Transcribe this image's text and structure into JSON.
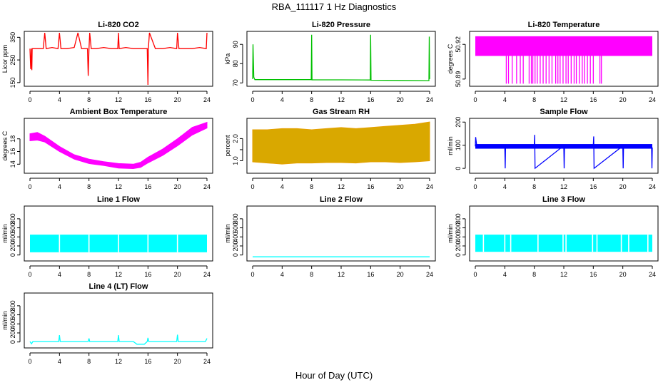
{
  "figure": {
    "title": "RBA_111117  1 Hz Diagnostics",
    "xlabel": "Hour of Day (UTC)"
  },
  "chart_data": [
    {
      "id": "co2",
      "type": "line",
      "title": "Li-820 CO2",
      "ylabel": "Licor ppm",
      "color": "#ff0000",
      "xlim": [
        0,
        24
      ],
      "ylim": [
        140,
        370
      ],
      "x_ticks": [
        0,
        4,
        8,
        12,
        16,
        20,
        24
      ],
      "y_ticks": [
        150,
        250,
        350
      ],
      "series": [
        {
          "x": [
            0,
            0.1,
            0.2,
            0.25,
            0.3,
            0.5,
            1,
            1.8,
            2,
            2.2,
            3,
            3.8,
            4,
            4.2,
            5,
            6,
            6.5,
            7,
            7.8,
            7.9,
            8,
            8.1,
            8.3,
            9,
            10,
            11,
            11.9,
            12,
            12.1,
            13,
            14,
            15,
            15.9,
            16,
            16.05,
            16.2,
            17,
            18,
            19,
            19.9,
            20,
            20.2,
            21,
            22,
            23,
            23.9,
            24
          ],
          "y": [
            300,
            210,
            300,
            205,
            300,
            300,
            300,
            300,
            370,
            300,
            305,
            300,
            370,
            300,
            300,
            305,
            370,
            300,
            300,
            180,
            300,
            370,
            300,
            300,
            305,
            300,
            300,
            370,
            300,
            305,
            300,
            300,
            300,
            140,
            300,
            370,
            300,
            300,
            305,
            300,
            370,
            300,
            300,
            300,
            305,
            300,
            370
          ]
        }
      ]
    },
    {
      "id": "pressure",
      "type": "line",
      "title": "Li-820 Pressure",
      "ylabel": "kPa",
      "color": "#00c000",
      "xlim": [
        0,
        24
      ],
      "ylim": [
        69,
        96
      ],
      "x_ticks": [
        0,
        4,
        8,
        12,
        16,
        20,
        24
      ],
      "y_ticks": [
        70,
        80,
        90
      ],
      "series": [
        {
          "x": [
            0,
            0.05,
            0.15,
            0.3,
            4,
            7.95,
            8,
            8.05,
            12,
            15.95,
            16,
            16.05,
            20,
            23.9,
            23.95,
            24
          ],
          "y": [
            72,
            90,
            73,
            71.7,
            71.7,
            71.7,
            95,
            71.6,
            71.6,
            71.5,
            95,
            71.4,
            71.3,
            71.2,
            94,
            72
          ]
        }
      ]
    },
    {
      "id": "li_temp",
      "type": "area",
      "title": "Li-820 Temperature",
      "ylabel": "degrees C",
      "color": "#ff00ff",
      "xlim": [
        0,
        24
      ],
      "ylim": [
        50.885,
        50.93
      ],
      "x_ticks": [
        0,
        4,
        8,
        12,
        16,
        20,
        24
      ],
      "y_ticks": [
        50.89,
        50.92
      ],
      "y_tick_labels": [
        "50.89",
        "50.92"
      ],
      "band": {
        "x_start": 0,
        "x_end": 24,
        "y_low": 50.91,
        "y_high": 50.927
      },
      "drops": {
        "y_low": 50.886,
        "x": [
          4.2,
          4.5,
          5.0,
          5.6,
          6.1,
          6.5,
          7.3,
          7.6,
          7.8,
          8.1,
          8.4,
          8.8,
          9.2,
          9.6,
          10.0,
          10.4,
          10.9,
          11.2,
          11.5,
          11.9,
          12.3,
          12.6,
          13.0,
          13.4,
          13.7,
          14.1,
          14.5,
          14.8,
          15.2,
          15.6,
          16.0,
          16.9,
          17.1
        ]
      }
    },
    {
      "id": "box_temp",
      "type": "area",
      "title": "Ambient Box Temperature",
      "ylabel": "degrees C",
      "color": "#ff00ff",
      "xlim": [
        0,
        24
      ],
      "ylim": [
        12.8,
        21
      ],
      "x_ticks": [
        0,
        4,
        8,
        12,
        16,
        20,
        24
      ],
      "y_ticks": [
        14,
        16,
        18
      ],
      "series": [
        {
          "x": [
            0,
            1,
            2,
            4,
            6,
            8,
            10,
            12,
            14,
            15,
            16,
            18,
            20,
            22,
            24
          ],
          "low": [
            17.7,
            17.8,
            17.5,
            16.0,
            14.8,
            14.1,
            13.8,
            13.4,
            13.3,
            13.5,
            14.2,
            15.4,
            16.9,
            18.6,
            19.7
          ],
          "high": [
            18.8,
            19.0,
            18.4,
            16.8,
            15.5,
            14.8,
            14.4,
            14.1,
            14.0,
            14.3,
            15.1,
            16.4,
            18.0,
            19.8,
            20.6
          ]
        }
      ]
    },
    {
      "id": "rh",
      "type": "area",
      "title": "Gas Stream RH",
      "ylabel": "percent",
      "color": "#e6a000",
      "fill_color": "#d9a800",
      "xlim": [
        0,
        24
      ],
      "ylim": [
        0.5,
        2.85
      ],
      "x_ticks": [
        0,
        4,
        8,
        12,
        16,
        20,
        24
      ],
      "y_ticks": [
        1.0,
        1.5,
        2.0
      ],
      "y_tick_labels": [
        "1.0",
        "",
        "2.0"
      ],
      "series": [
        {
          "x": [
            0,
            2,
            4,
            6,
            8,
            10,
            12,
            14,
            16,
            18,
            20,
            22,
            24
          ],
          "low": [
            0.95,
            0.9,
            0.85,
            0.9,
            0.9,
            0.92,
            0.92,
            0.9,
            0.95,
            0.95,
            0.92,
            0.95,
            1.0
          ],
          "high": [
            2.4,
            2.4,
            2.45,
            2.45,
            2.4,
            2.45,
            2.5,
            2.45,
            2.5,
            2.55,
            2.6,
            2.65,
            2.75
          ]
        }
      ]
    },
    {
      "id": "sample_flow",
      "type": "line",
      "title": "Sample Flow",
      "ylabel": "ml/min",
      "color": "#0000ff",
      "xlim": [
        0,
        24
      ],
      "ylim": [
        -15,
        210
      ],
      "x_ticks": [
        0,
        4,
        8,
        12,
        16,
        20,
        24
      ],
      "y_ticks": [
        0,
        100,
        200
      ],
      "series": [
        {
          "x": [
            0,
            0.05,
            0.2,
            4,
            4.05,
            4.1,
            8,
            8.05,
            8.1,
            12,
            12.05,
            12.1,
            16,
            16.05,
            16.1,
            20,
            20.05,
            20.1,
            23.9,
            23.95,
            24
          ],
          "y": [
            95,
            135,
            95,
            98,
            0,
            100,
            98,
            145,
            0,
            98,
            0,
            100,
            98,
            138,
            0,
            97,
            0,
            96,
            95,
            0,
            90
          ]
        }
      ],
      "band": {
        "x_start": 0,
        "x_end": 24,
        "y_low": 85,
        "y_high": 105
      }
    },
    {
      "id": "line1",
      "type": "area",
      "title": "Line 1 Flow",
      "ylabel": "ml/min",
      "color": "#00ffff",
      "xlim": [
        0,
        24
      ],
      "ylim": [
        -100,
        1050
      ],
      "x_ticks": [
        0,
        4,
        8,
        12,
        16,
        20,
        24
      ],
      "y_ticks": [
        0,
        200,
        400,
        600,
        800
      ],
      "band": {
        "x_start": 0,
        "x_end": 24,
        "y_low": 60,
        "y_high": 450
      },
      "gaps": [
        4,
        8,
        12,
        16,
        20
      ]
    },
    {
      "id": "line2",
      "type": "line",
      "title": "Line 2 Flow",
      "ylabel": "ml/min",
      "color": "#00ffff",
      "xlim": [
        0,
        24
      ],
      "ylim": [
        -100,
        1050
      ],
      "x_ticks": [
        0,
        4,
        8,
        12,
        16,
        20,
        24
      ],
      "y_ticks": [
        0,
        200,
        400,
        600,
        800
      ],
      "series": [
        {
          "x": [
            0,
            24
          ],
          "y": [
            -40,
            -40
          ]
        }
      ]
    },
    {
      "id": "line3",
      "type": "area",
      "title": "Line 3 Flow",
      "ylabel": "ml/min",
      "color": "#00ffff",
      "xlim": [
        0,
        24
      ],
      "ylim": [
        -100,
        1050
      ],
      "x_ticks": [
        0,
        4,
        8,
        12,
        16,
        20,
        24
      ],
      "y_ticks": [
        0,
        200,
        400,
        600,
        800
      ],
      "band": {
        "x_start": 0,
        "x_end": 24,
        "y_low": 70,
        "y_high": 450
      },
      "gaps": [
        1.1,
        4,
        4.8,
        8.5,
        11.9,
        12.3,
        15.9,
        16.5,
        19.8,
        20.8,
        23.4
      ]
    },
    {
      "id": "line4",
      "type": "line",
      "title": "Line 4 (LT) Flow",
      "ylabel": "ml/min",
      "color": "#00ffff",
      "xlim": [
        0,
        24
      ],
      "ylim": [
        -100,
        1050
      ],
      "x_ticks": [
        0,
        4,
        8,
        12,
        16,
        20,
        24
      ],
      "y_ticks": [
        0,
        200,
        400,
        600,
        800
      ],
      "series": [
        {
          "x": [
            0,
            0.2,
            0.4,
            3.9,
            4,
            4.1,
            7.9,
            8,
            8.1,
            11.9,
            12,
            12.1,
            14,
            14.5,
            15.5,
            15.9,
            16,
            16.1,
            19.9,
            20,
            20.1,
            23.8,
            24
          ],
          "y": [
            10,
            -40,
            10,
            10,
            150,
            10,
            10,
            80,
            10,
            10,
            150,
            10,
            10,
            -50,
            -50,
            10,
            90,
            10,
            10,
            160,
            10,
            10,
            80
          ]
        }
      ]
    }
  ]
}
